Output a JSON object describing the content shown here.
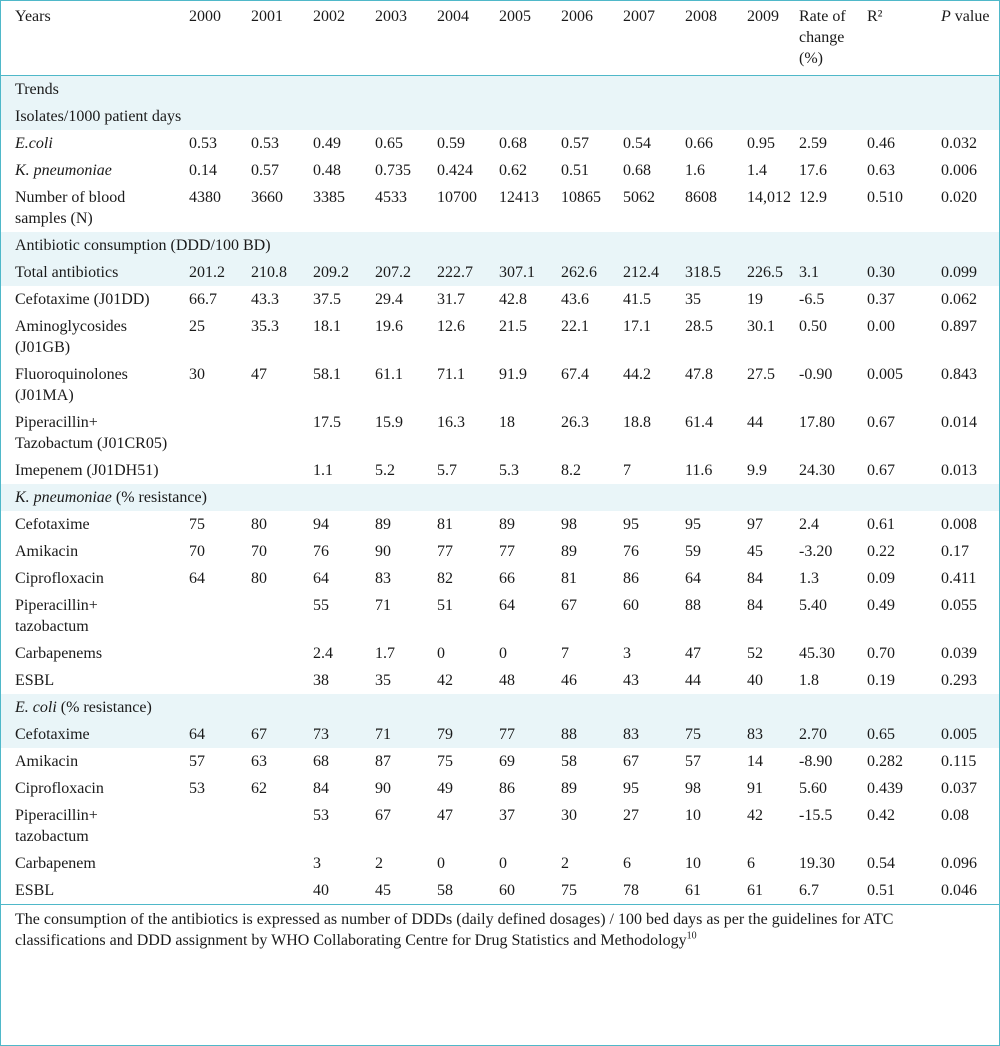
{
  "header": [
    "Years",
    "2000",
    "2001",
    "2002",
    "2003",
    "2004",
    "2005",
    "2006",
    "2007",
    "2008",
    "2009",
    "Rate of change (%)",
    "R²",
    "P value"
  ],
  "sections": [
    {
      "type": "section",
      "label": "Trends"
    },
    {
      "type": "section",
      "label": "Isolates/1000 patient days"
    },
    {
      "type": "row",
      "label": "E.coli",
      "italic": true,
      "cells": [
        "0.53",
        "0.53",
        "0.49",
        "0.65",
        "0.59",
        "0.68",
        "0.57",
        "0.54",
        "0.66",
        "0.95",
        "2.59",
        "0.46",
        "0.032"
      ]
    },
    {
      "type": "row",
      "label": "K. pneumoniae",
      "italic": true,
      "cells": [
        "0.14",
        "0.57",
        "0.48",
        "0.735",
        "0.424",
        "0.62",
        "0.51",
        "0.68",
        "1.6",
        "1.4",
        "17.6",
        "0.63",
        "0.006"
      ]
    },
    {
      "type": "row",
      "label": "Number of blood samples (N)",
      "cells": [
        "4380",
        "3660",
        "3385",
        "4533",
        "10700",
        "12413",
        "10865",
        "5062",
        "8608",
        "14,012",
        "12.9",
        "0.510",
        "0.020"
      ]
    },
    {
      "type": "section",
      "label": "Antibiotic consumption (DDD/100 BD)"
    },
    {
      "type": "row",
      "label": "Total antibiotics",
      "band": true,
      "cells": [
        "201.2",
        "210.8",
        "209.2",
        "207.2",
        "222.7",
        "307.1",
        "262.6",
        "212.4",
        "318.5",
        "226.5",
        "3.1",
        "0.30",
        "0.099"
      ]
    },
    {
      "type": "row",
      "label": "Cefotaxime (J01DD)",
      "cells": [
        "66.7",
        "43.3",
        "37.5",
        "29.4",
        "31.7",
        "42.8",
        "43.6",
        "41.5",
        "35",
        "19",
        "-6.5",
        "0.37",
        "0.062"
      ]
    },
    {
      "type": "row",
      "label": "Aminoglycosides (J01GB)",
      "cells": [
        "25",
        "35.3",
        "18.1",
        "19.6",
        "12.6",
        "21.5",
        "22.1",
        "17.1",
        "28.5",
        "30.1",
        "0.50",
        "0.00",
        "0.897"
      ]
    },
    {
      "type": "row",
      "label": "Fluoroquinolones (J01MA)",
      "cells": [
        "30",
        "47",
        "58.1",
        "61.1",
        "71.1",
        "91.9",
        "67.4",
        "44.2",
        "47.8",
        "27.5",
        "-0.90",
        "0.005",
        "0.843"
      ]
    },
    {
      "type": "row",
      "label": "Piperacillin+ Tazobactum (J01CR05)",
      "cells": [
        "",
        "",
        "17.5",
        "15.9",
        "16.3",
        "18",
        "26.3",
        "18.8",
        "61.4",
        "44",
        "17.80",
        "0.67",
        "0.014"
      ]
    },
    {
      "type": "row",
      "label": "Imepenem (J01DH51)",
      "cells": [
        "",
        "",
        "1.1",
        "5.2",
        "5.7",
        "5.3",
        "8.2",
        "7",
        "11.6",
        "9.9",
        "24.30",
        "0.67",
        "0.013"
      ]
    },
    {
      "type": "section",
      "label_italic": "K. pneumoniae",
      "label_rest": " (% resistance)"
    },
    {
      "type": "row",
      "label": "Cefotaxime",
      "cells": [
        "75",
        "80",
        "94",
        "89",
        "81",
        "89",
        "98",
        "95",
        "95",
        "97",
        "2.4",
        "0.61",
        "0.008"
      ]
    },
    {
      "type": "row",
      "label": "Amikacin",
      "cells": [
        "70",
        "70",
        "76",
        "90",
        "77",
        "77",
        "89",
        "76",
        "59",
        "45",
        "-3.20",
        "0.22",
        "0.17"
      ]
    },
    {
      "type": "row",
      "label": "Ciprofloxacin",
      "cells": [
        "64",
        "80",
        "64",
        "83",
        "82",
        "66",
        "81",
        "86",
        "64",
        "84",
        "1.3",
        "0.09",
        "0.411"
      ]
    },
    {
      "type": "row",
      "label": "Piperacillin+ tazobactum",
      "cells": [
        "",
        "",
        "55",
        "71",
        "51",
        "64",
        "67",
        "60",
        "88",
        "84",
        "5.40",
        "0.49",
        "0.055"
      ]
    },
    {
      "type": "row",
      "label": "Carbapenems",
      "cells": [
        "",
        "",
        "2.4",
        "1.7",
        "0",
        "0",
        "7",
        "3",
        "47",
        "52",
        "45.30",
        "0.70",
        "0.039"
      ]
    },
    {
      "type": "row",
      "label": "ESBL",
      "cells": [
        "",
        "",
        "38",
        "35",
        "42",
        "48",
        "46",
        "43",
        "44",
        "40",
        "1.8",
        "0.19",
        "0.293"
      ]
    },
    {
      "type": "section",
      "label_italic": "E. coli",
      "label_rest": " (% resistance)"
    },
    {
      "type": "row",
      "label": "Cefotaxime",
      "band": true,
      "cells": [
        "64",
        "67",
        "73",
        "71",
        "79",
        "77",
        "88",
        "83",
        "75",
        "83",
        "2.70",
        "0.65",
        "0.005"
      ]
    },
    {
      "type": "row",
      "label": "Amikacin",
      "cells": [
        "57",
        "63",
        "68",
        "87",
        "75",
        "69",
        "58",
        "67",
        "57",
        "14",
        "-8.90",
        "0.282",
        "0.115"
      ]
    },
    {
      "type": "row",
      "label": "Ciprofloxacin",
      "cells": [
        "53",
        "62",
        "84",
        "90",
        "49",
        "86",
        "89",
        "95",
        "98",
        "91",
        "5.60",
        "0.439",
        "0.037"
      ]
    },
    {
      "type": "row",
      "label": "Piperacillin+ tazobactum",
      "cells": [
        "",
        "",
        "53",
        "67",
        "47",
        "37",
        "30",
        "27",
        "10",
        "42",
        "-15.5",
        "0.42",
        "0.08"
      ]
    },
    {
      "type": "row",
      "label": "Carbapenem",
      "cells": [
        "",
        "",
        "3",
        "2",
        "0",
        "0",
        "2",
        "6",
        "10",
        "6",
        "19.30",
        "0.54",
        "0.096"
      ]
    },
    {
      "type": "row",
      "label": "ESBL",
      "cells": [
        "",
        "",
        "40",
        "45",
        "58",
        "60",
        "75",
        "78",
        "61",
        "61",
        "6.7",
        "0.51",
        "0.046"
      ]
    }
  ],
  "footnote": "The consumption of the antibiotics is expressed as number of DDDs (daily defined dosages) / 100 bed days as per the guidelines for ATC classifications and DDD assignment by WHO Collaborating Centre for Drug Statistics and Methodology",
  "footnote_ref": "10"
}
